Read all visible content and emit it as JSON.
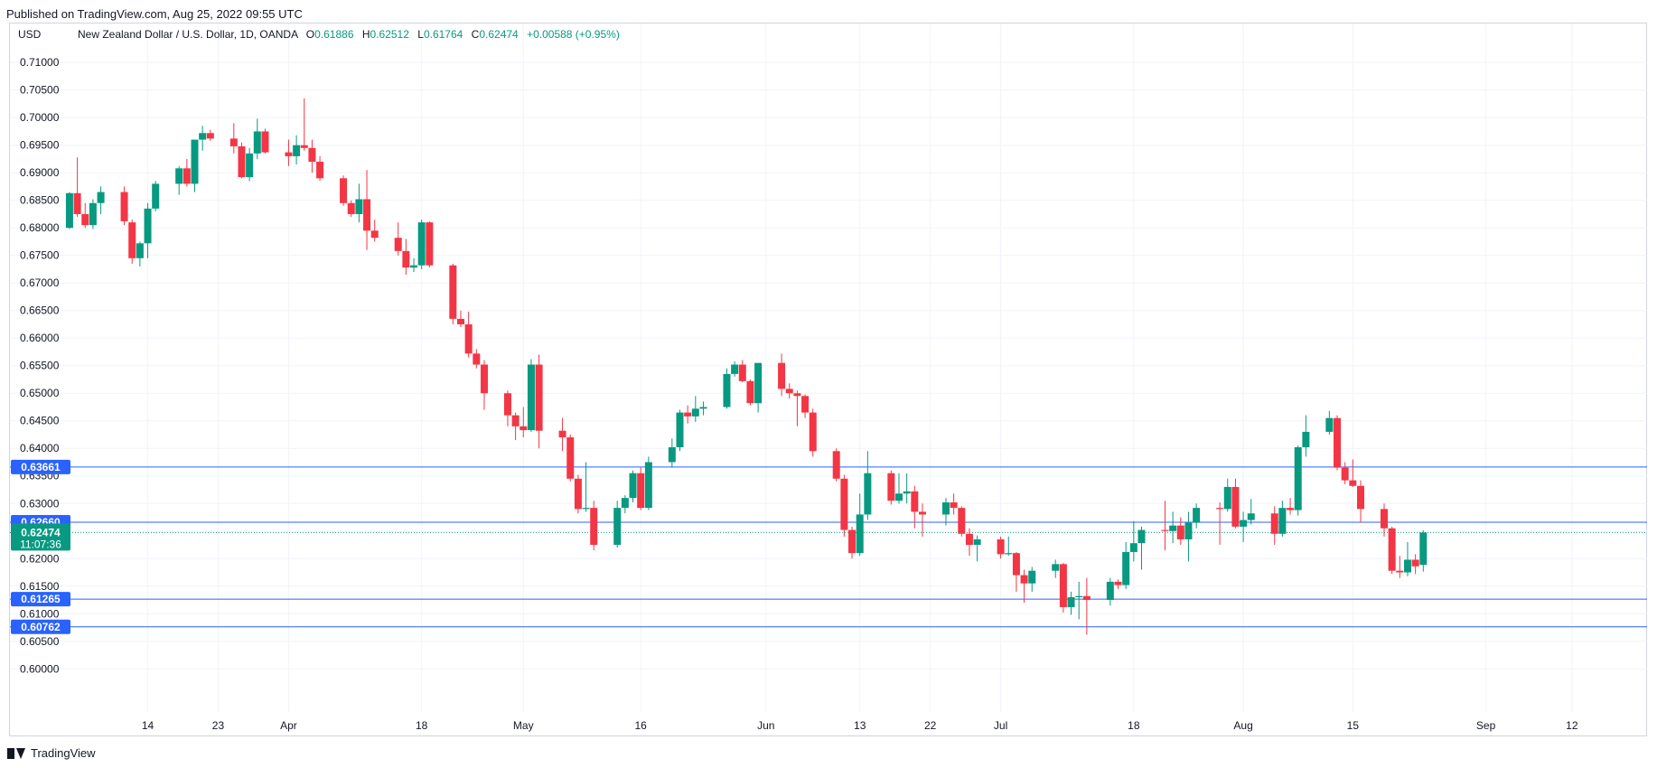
{
  "header": {
    "published_text": "Published on TradingView.com, Aug 25, 2022 09:55 UTC"
  },
  "footer": {
    "brand": "TradingView",
    "logo_icon": "tradingview-logo-icon"
  },
  "chart_data": {
    "type": "candlestick",
    "currency_label": "USD",
    "legend": {
      "symbol": "New Zealand Dollar / U.S. Dollar, 1D, OANDA",
      "o_label": "O",
      "o_value": "0.61886",
      "h_label": "H",
      "h_value": "0.62512",
      "l_label": "L",
      "l_value": "0.61764",
      "c_label": "C",
      "c_value": "0.62474",
      "change": "+0.00588 (+0.95%)"
    },
    "y_ticks": [
      "0.60000",
      "0.60500",
      "0.61000",
      "0.61500",
      "0.62000",
      "0.62500",
      "0.63000",
      "0.63500",
      "0.64000",
      "0.64500",
      "0.65000",
      "0.65500",
      "0.66000",
      "0.66500",
      "0.67000",
      "0.67500",
      "0.68000",
      "0.68500",
      "0.69000",
      "0.69500",
      "0.70000",
      "0.70500",
      "0.71000"
    ],
    "y_range": [
      0.5948,
      0.7138
    ],
    "x_ticks": [
      {
        "label": "14",
        "day": 4
      },
      {
        "label": "23",
        "day": 13
      },
      {
        "label": "Apr",
        "day": 22
      },
      {
        "label": "18",
        "day": 39
      },
      {
        "label": "May",
        "day": 52
      },
      {
        "label": "16",
        "day": 67
      },
      {
        "label": "Jun",
        "day": 83
      },
      {
        "label": "13",
        "day": 95
      },
      {
        "label": "22",
        "day": 104
      },
      {
        "label": "Jul",
        "day": 113
      },
      {
        "label": "18",
        "day": 130
      },
      {
        "label": "Aug",
        "day": 144
      },
      {
        "label": "15",
        "day": 158
      },
      {
        "label": "Sep",
        "day": 175
      },
      {
        "label": "12",
        "day": 186
      }
    ],
    "x_day_range": [
      -6.8,
      195.6
    ],
    "horizontal_lines": [
      {
        "value": 0.63661,
        "label": "0.63661",
        "color": "#2962ff"
      },
      {
        "value": 0.6266,
        "label": "0.62660",
        "color": "#2962ff"
      },
      {
        "value": 0.61265,
        "label": "0.61265",
        "color": "#2962ff"
      },
      {
        "value": 0.60762,
        "label": "0.60762",
        "color": "#2962ff"
      }
    ],
    "last_price": {
      "value": 0.62474,
      "label": "0.62474",
      "countdown": "11:07:36",
      "color": "#089981"
    },
    "colors": {
      "up": "#089981",
      "down": "#f23645",
      "line": "#2962ff",
      "grid": "#f0f3fa"
    },
    "candles": [
      {
        "d": -6,
        "o": 0.68,
        "h": 0.6865,
        "l": 0.6798,
        "c": 0.6863
      },
      {
        "d": -5,
        "o": 0.6863,
        "h": 0.6928,
        "l": 0.682,
        "c": 0.6825
      },
      {
        "d": -4,
        "o": 0.6825,
        "h": 0.6845,
        "l": 0.68,
        "c": 0.6805
      },
      {
        "d": -3,
        "o": 0.6805,
        "h": 0.6852,
        "l": 0.6798,
        "c": 0.6845
      },
      {
        "d": -2,
        "o": 0.6845,
        "h": 0.6875,
        "l": 0.6825,
        "c": 0.6865
      },
      {
        "d": 1,
        "o": 0.6865,
        "h": 0.6875,
        "l": 0.6805,
        "c": 0.6812
      },
      {
        "d": 2,
        "o": 0.681,
        "h": 0.6815,
        "l": 0.6735,
        "c": 0.6745
      },
      {
        "d": 3,
        "o": 0.6745,
        "h": 0.6775,
        "l": 0.673,
        "c": 0.6772
      },
      {
        "d": 4,
        "o": 0.6772,
        "h": 0.6845,
        "l": 0.6745,
        "c": 0.6835
      },
      {
        "d": 5,
        "o": 0.6835,
        "h": 0.6885,
        "l": 0.683,
        "c": 0.688
      },
      {
        "d": 8,
        "o": 0.688,
        "h": 0.6912,
        "l": 0.686,
        "c": 0.6908
      },
      {
        "d": 9,
        "o": 0.6908,
        "h": 0.6925,
        "l": 0.6875,
        "c": 0.688
      },
      {
        "d": 10,
        "o": 0.688,
        "h": 0.696,
        "l": 0.6865,
        "c": 0.696
      },
      {
        "d": 11,
        "o": 0.696,
        "h": 0.6985,
        "l": 0.694,
        "c": 0.6972
      },
      {
        "d": 12,
        "o": 0.6972,
        "h": 0.6978,
        "l": 0.6958,
        "c": 0.6962
      },
      {
        "d": 15,
        "o": 0.6962,
        "h": 0.699,
        "l": 0.6935,
        "c": 0.6948
      },
      {
        "d": 16,
        "o": 0.6948,
        "h": 0.6955,
        "l": 0.689,
        "c": 0.6892
      },
      {
        "d": 17,
        "o": 0.6892,
        "h": 0.6945,
        "l": 0.6885,
        "c": 0.6935
      },
      {
        "d": 18,
        "o": 0.6935,
        "h": 0.6998,
        "l": 0.6925,
        "c": 0.6975
      },
      {
        "d": 19,
        "o": 0.6975,
        "h": 0.698,
        "l": 0.6935,
        "c": 0.6937
      },
      {
        "d": 22,
        "o": 0.6937,
        "h": 0.696,
        "l": 0.6912,
        "c": 0.693
      },
      {
        "d": 23,
        "o": 0.693,
        "h": 0.6968,
        "l": 0.6915,
        "c": 0.695
      },
      {
        "d": 24,
        "o": 0.695,
        "h": 0.7035,
        "l": 0.694,
        "c": 0.6945
      },
      {
        "d": 25,
        "o": 0.6945,
        "h": 0.696,
        "l": 0.69,
        "c": 0.692
      },
      {
        "d": 26,
        "o": 0.692,
        "h": 0.693,
        "l": 0.6885,
        "c": 0.689
      },
      {
        "d": 29,
        "o": 0.689,
        "h": 0.6895,
        "l": 0.684,
        "c": 0.6845
      },
      {
        "d": 30,
        "o": 0.6845,
        "h": 0.685,
        "l": 0.682,
        "c": 0.6825
      },
      {
        "d": 31,
        "o": 0.6825,
        "h": 0.688,
        "l": 0.681,
        "c": 0.6852
      },
      {
        "d": 32,
        "o": 0.6852,
        "h": 0.6905,
        "l": 0.676,
        "c": 0.6795
      },
      {
        "d": 33,
        "o": 0.6795,
        "h": 0.6815,
        "l": 0.6775,
        "c": 0.6782
      },
      {
        "d": 36,
        "o": 0.6782,
        "h": 0.681,
        "l": 0.675,
        "c": 0.6758
      },
      {
        "d": 37,
        "o": 0.6758,
        "h": 0.678,
        "l": 0.6715,
        "c": 0.6728
      },
      {
        "d": 38,
        "o": 0.6728,
        "h": 0.6745,
        "l": 0.672,
        "c": 0.6732
      },
      {
        "d": 39,
        "o": 0.6732,
        "h": 0.6815,
        "l": 0.6725,
        "c": 0.681
      },
      {
        "d": 40,
        "o": 0.681,
        "h": 0.6812,
        "l": 0.6728,
        "c": 0.6732
      },
      {
        "d": 43,
        "o": 0.6732,
        "h": 0.6735,
        "l": 0.6625,
        "c": 0.6635
      },
      {
        "d": 44,
        "o": 0.6635,
        "h": 0.665,
        "l": 0.662,
        "c": 0.6625
      },
      {
        "d": 45,
        "o": 0.6625,
        "h": 0.6648,
        "l": 0.6565,
        "c": 0.6572
      },
      {
        "d": 46,
        "o": 0.6572,
        "h": 0.658,
        "l": 0.6545,
        "c": 0.6552
      },
      {
        "d": 47,
        "o": 0.6552,
        "h": 0.656,
        "l": 0.647,
        "c": 0.65
      },
      {
        "d": 50,
        "o": 0.65,
        "h": 0.6505,
        "l": 0.644,
        "c": 0.646
      },
      {
        "d": 51,
        "o": 0.646,
        "h": 0.6465,
        "l": 0.6415,
        "c": 0.644
      },
      {
        "d": 52,
        "o": 0.644,
        "h": 0.6475,
        "l": 0.642,
        "c": 0.6433
      },
      {
        "d": 53,
        "o": 0.6433,
        "h": 0.6562,
        "l": 0.643,
        "c": 0.6552
      },
      {
        "d": 54,
        "o": 0.6552,
        "h": 0.657,
        "l": 0.64,
        "c": 0.6432
      },
      {
        "d": 57,
        "o": 0.6432,
        "h": 0.6455,
        "l": 0.6395,
        "c": 0.642
      },
      {
        "d": 58,
        "o": 0.642,
        "h": 0.6425,
        "l": 0.634,
        "c": 0.6345
      },
      {
        "d": 59,
        "o": 0.6345,
        "h": 0.6352,
        "l": 0.6282,
        "c": 0.629
      },
      {
        "d": 60,
        "o": 0.629,
        "h": 0.6375,
        "l": 0.6285,
        "c": 0.6292
      },
      {
        "d": 61,
        "o": 0.6292,
        "h": 0.6305,
        "l": 0.6215,
        "c": 0.6225
      },
      {
        "d": 64,
        "o": 0.6225,
        "h": 0.6305,
        "l": 0.622,
        "c": 0.6292
      },
      {
        "d": 65,
        "o": 0.6292,
        "h": 0.6315,
        "l": 0.6282,
        "c": 0.631
      },
      {
        "d": 66,
        "o": 0.631,
        "h": 0.636,
        "l": 0.6302,
        "c": 0.6355
      },
      {
        "d": 67,
        "o": 0.6355,
        "h": 0.6365,
        "l": 0.6288,
        "c": 0.6292
      },
      {
        "d": 68,
        "o": 0.6292,
        "h": 0.6385,
        "l": 0.6288,
        "c": 0.6375
      },
      {
        "d": 71,
        "o": 0.6375,
        "h": 0.6418,
        "l": 0.6365,
        "c": 0.6402
      },
      {
        "d": 72,
        "o": 0.6402,
        "h": 0.647,
        "l": 0.6395,
        "c": 0.6465
      },
      {
        "d": 73,
        "o": 0.6465,
        "h": 0.6478,
        "l": 0.6445,
        "c": 0.6458
      },
      {
        "d": 74,
        "o": 0.6458,
        "h": 0.6495,
        "l": 0.6448,
        "c": 0.6472
      },
      {
        "d": 75,
        "o": 0.6472,
        "h": 0.6485,
        "l": 0.646,
        "c": 0.6475
      },
      {
        "d": 78,
        "o": 0.6475,
        "h": 0.6545,
        "l": 0.6472,
        "c": 0.6535
      },
      {
        "d": 79,
        "o": 0.6535,
        "h": 0.6558,
        "l": 0.653,
        "c": 0.6552
      },
      {
        "d": 80,
        "o": 0.6552,
        "h": 0.656,
        "l": 0.652,
        "c": 0.6522
      },
      {
        "d": 81,
        "o": 0.6522,
        "h": 0.6525,
        "l": 0.6478,
        "c": 0.6482
      },
      {
        "d": 82,
        "o": 0.6482,
        "h": 0.6555,
        "l": 0.6465,
        "c": 0.6555
      },
      {
        "d": 85,
        "o": 0.6555,
        "h": 0.6572,
        "l": 0.6495,
        "c": 0.6508
      },
      {
        "d": 86,
        "o": 0.6508,
        "h": 0.6518,
        "l": 0.649,
        "c": 0.65
      },
      {
        "d": 87,
        "o": 0.65,
        "h": 0.6505,
        "l": 0.644,
        "c": 0.6495
      },
      {
        "d": 88,
        "o": 0.6495,
        "h": 0.6498,
        "l": 0.6455,
        "c": 0.6465
      },
      {
        "d": 89,
        "o": 0.6465,
        "h": 0.6472,
        "l": 0.6385,
        "c": 0.6395
      },
      {
        "d": 92,
        "o": 0.6395,
        "h": 0.64,
        "l": 0.634,
        "c": 0.6345
      },
      {
        "d": 93,
        "o": 0.6345,
        "h": 0.6352,
        "l": 0.624,
        "c": 0.6252
      },
      {
        "d": 94,
        "o": 0.6252,
        "h": 0.6258,
        "l": 0.62,
        "c": 0.621
      },
      {
        "d": 95,
        "o": 0.621,
        "h": 0.6318,
        "l": 0.6205,
        "c": 0.628
      },
      {
        "d": 96,
        "o": 0.628,
        "h": 0.6395,
        "l": 0.627,
        "c": 0.6355
      },
      {
        "d": 99,
        "o": 0.6355,
        "h": 0.636,
        "l": 0.6298,
        "c": 0.6305
      },
      {
        "d": 100,
        "o": 0.6305,
        "h": 0.6355,
        "l": 0.63,
        "c": 0.6318
      },
      {
        "d": 101,
        "o": 0.6318,
        "h": 0.6355,
        "l": 0.63,
        "c": 0.6322
      },
      {
        "d": 102,
        "o": 0.6322,
        "h": 0.6332,
        "l": 0.6255,
        "c": 0.6285
      },
      {
        "d": 103,
        "o": 0.6285,
        "h": 0.63,
        "l": 0.624,
        "c": 0.628
      },
      {
        "d": 106,
        "o": 0.628,
        "h": 0.631,
        "l": 0.626,
        "c": 0.6302
      },
      {
        "d": 107,
        "o": 0.6302,
        "h": 0.6318,
        "l": 0.628,
        "c": 0.6292
      },
      {
        "d": 108,
        "o": 0.6292,
        "h": 0.6295,
        "l": 0.624,
        "c": 0.6245
      },
      {
        "d": 109,
        "o": 0.6245,
        "h": 0.6255,
        "l": 0.6205,
        "c": 0.6225
      },
      {
        "d": 110,
        "o": 0.6225,
        "h": 0.6242,
        "l": 0.6195,
        "c": 0.6235
      },
      {
        "d": 113,
        "o": 0.6235,
        "h": 0.624,
        "l": 0.62,
        "c": 0.6208
      },
      {
        "d": 114,
        "o": 0.6208,
        "h": 0.624,
        "l": 0.6205,
        "c": 0.621
      },
      {
        "d": 115,
        "o": 0.621,
        "h": 0.6212,
        "l": 0.614,
        "c": 0.617
      },
      {
        "d": 116,
        "o": 0.617,
        "h": 0.618,
        "l": 0.612,
        "c": 0.6155
      },
      {
        "d": 117,
        "o": 0.6155,
        "h": 0.6185,
        "l": 0.614,
        "c": 0.6178
      },
      {
        "d": 120,
        "o": 0.6178,
        "h": 0.6198,
        "l": 0.6165,
        "c": 0.619
      },
      {
        "d": 121,
        "o": 0.619,
        "h": 0.6192,
        "l": 0.6102,
        "c": 0.6112
      },
      {
        "d": 122,
        "o": 0.6112,
        "h": 0.614,
        "l": 0.6098,
        "c": 0.613
      },
      {
        "d": 123,
        "o": 0.613,
        "h": 0.6158,
        "l": 0.609,
        "c": 0.6132
      },
      {
        "d": 124,
        "o": 0.6132,
        "h": 0.6165,
        "l": 0.6062,
        "c": 0.6125
      },
      {
        "d": 127,
        "o": 0.6125,
        "h": 0.6165,
        "l": 0.6115,
        "c": 0.6158
      },
      {
        "d": 128,
        "o": 0.6158,
        "h": 0.6162,
        "l": 0.6145,
        "c": 0.6152
      },
      {
        "d": 129,
        "o": 0.6152,
        "h": 0.623,
        "l": 0.6145,
        "c": 0.6212
      },
      {
        "d": 130,
        "o": 0.6212,
        "h": 0.6268,
        "l": 0.6195,
        "c": 0.6228
      },
      {
        "d": 131,
        "o": 0.6228,
        "h": 0.6258,
        "l": 0.618,
        "c": 0.6252
      },
      {
        "d": 134,
        "o": 0.6252,
        "h": 0.6305,
        "l": 0.6215,
        "c": 0.625
      },
      {
        "d": 135,
        "o": 0.625,
        "h": 0.6285,
        "l": 0.6228,
        "c": 0.626
      },
      {
        "d": 136,
        "o": 0.626,
        "h": 0.6275,
        "l": 0.6225,
        "c": 0.6235
      },
      {
        "d": 137,
        "o": 0.6235,
        "h": 0.6285,
        "l": 0.6195,
        "c": 0.6265
      },
      {
        "d": 138,
        "o": 0.6265,
        "h": 0.63,
        "l": 0.6255,
        "c": 0.6292
      },
      {
        "d": 141,
        "o": 0.6292,
        "h": 0.6302,
        "l": 0.6225,
        "c": 0.629
      },
      {
        "d": 142,
        "o": 0.629,
        "h": 0.6345,
        "l": 0.6285,
        "c": 0.633
      },
      {
        "d": 143,
        "o": 0.633,
        "h": 0.6345,
        "l": 0.6255,
        "c": 0.6258
      },
      {
        "d": 144,
        "o": 0.6258,
        "h": 0.6285,
        "l": 0.623,
        "c": 0.627
      },
      {
        "d": 145,
        "o": 0.627,
        "h": 0.6308,
        "l": 0.6262,
        "c": 0.6282
      },
      {
        "d": 148,
        "o": 0.6282,
        "h": 0.6295,
        "l": 0.6225,
        "c": 0.6245
      },
      {
        "d": 149,
        "o": 0.6245,
        "h": 0.6305,
        "l": 0.624,
        "c": 0.6292
      },
      {
        "d": 150,
        "o": 0.6292,
        "h": 0.631,
        "l": 0.628,
        "c": 0.6288
      },
      {
        "d": 151,
        "o": 0.6288,
        "h": 0.6405,
        "l": 0.6278,
        "c": 0.6402
      },
      {
        "d": 152,
        "o": 0.6402,
        "h": 0.646,
        "l": 0.6385,
        "c": 0.643
      },
      {
        "d": 155,
        "o": 0.643,
        "h": 0.6468,
        "l": 0.6425,
        "c": 0.6455
      },
      {
        "d": 156,
        "o": 0.6455,
        "h": 0.646,
        "l": 0.636,
        "c": 0.6365
      },
      {
        "d": 157,
        "o": 0.6365,
        "h": 0.6375,
        "l": 0.6335,
        "c": 0.6342
      },
      {
        "d": 158,
        "o": 0.6342,
        "h": 0.638,
        "l": 0.633,
        "c": 0.6332
      },
      {
        "d": 159,
        "o": 0.6332,
        "h": 0.6342,
        "l": 0.6265,
        "c": 0.629
      },
      {
        "d": 162,
        "o": 0.629,
        "h": 0.63,
        "l": 0.624,
        "c": 0.6255
      },
      {
        "d": 163,
        "o": 0.6255,
        "h": 0.6258,
        "l": 0.6172,
        "c": 0.6178
      },
      {
        "d": 164,
        "o": 0.6178,
        "h": 0.6205,
        "l": 0.6165,
        "c": 0.6175
      },
      {
        "d": 165,
        "o": 0.6175,
        "h": 0.623,
        "l": 0.6168,
        "c": 0.6198
      },
      {
        "d": 166,
        "o": 0.6198,
        "h": 0.6208,
        "l": 0.6172,
        "c": 0.6186
      },
      {
        "d": 167,
        "o": 0.61886,
        "h": 0.62512,
        "l": 0.61764,
        "c": 0.62474
      }
    ]
  }
}
